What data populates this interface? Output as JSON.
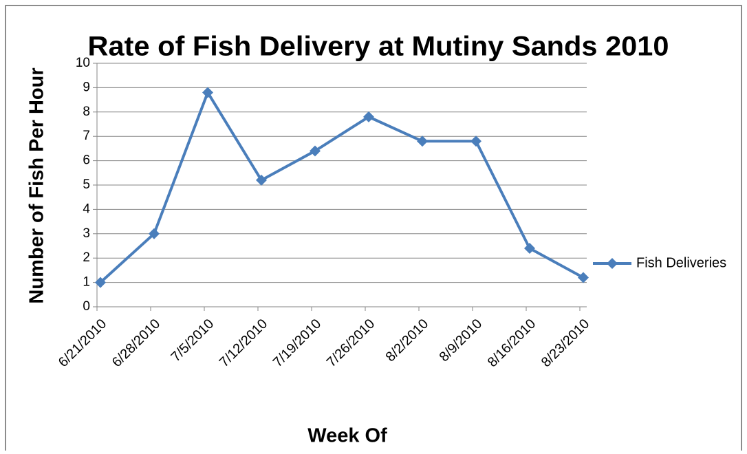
{
  "chart_data": {
    "type": "line",
    "title": "Rate of Fish Delivery at Mutiny Sands 2010",
    "x_label": "Week Of",
    "y_label": "Number of Fish Per Hour",
    "categories": [
      "6/21/2010",
      "6/28/2010",
      "7/5/2010",
      "7/12/2010",
      "7/19/2010",
      "7/26/2010",
      "8/2/2010",
      "8/9/2010",
      "8/16/2010",
      "8/23/2010"
    ],
    "series": [
      {
        "name": "Fish Deliveries",
        "color": "#4a7ebb",
        "values": [
          1,
          3,
          8.8,
          5.2,
          6.4,
          7.8,
          6.8,
          6.8,
          2.4,
          1.2
        ]
      }
    ],
    "ylim": [
      0,
      10
    ],
    "yticks": [
      0,
      1,
      2,
      3,
      4,
      5,
      6,
      7,
      8,
      9,
      10
    ],
    "grid": true,
    "legend": "right"
  }
}
